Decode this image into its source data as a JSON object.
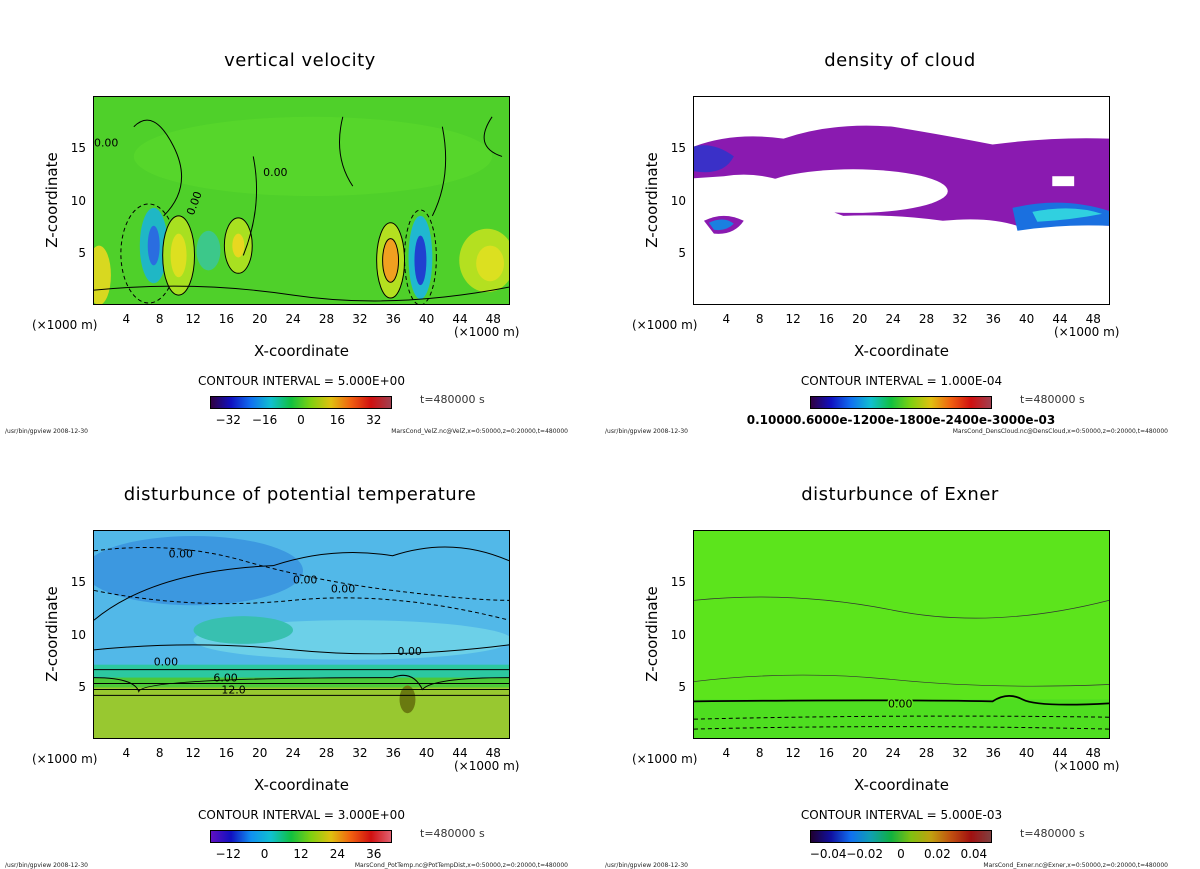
{
  "chart_data": [
    {
      "type": "heatmap",
      "title": "vertical velocity",
      "xlabel": "X-coordinate",
      "ylabel": "Z-coordinate",
      "x_unit": "(×1000 m)",
      "xlim": [
        0,
        50
      ],
      "ylim": [
        0,
        20
      ],
      "xticks": [
        "4",
        "8",
        "12",
        "16",
        "20",
        "24",
        "28",
        "32",
        "36",
        "40",
        "44",
        "48"
      ],
      "yticks": [
        "5",
        "10",
        "15"
      ],
      "contour_interval": "CONTOUR INTERVAL = 5.000E+00",
      "colorbar_ticks": [
        "−32",
        "−16",
        "0",
        "16",
        "32"
      ],
      "colorbar_range": [
        -40,
        40
      ],
      "contour_labels": [
        "0.00",
        "0.00",
        "0.00"
      ],
      "time": "t=480000 s",
      "footer_left": "/usr/bin/gpview  2008-12-30",
      "footer_right": "MarsCond_VelZ.nc@VelZ,x=0:50000,z=0:20000,t=480000"
    },
    {
      "type": "heatmap",
      "title": "density of cloud",
      "xlabel": "X-coordinate",
      "ylabel": "Z-coordinate",
      "x_unit": "(×1000 m)",
      "xlim": [
        0,
        50
      ],
      "ylim": [
        0,
        20
      ],
      "xticks": [
        "4",
        "8",
        "12",
        "16",
        "20",
        "24",
        "28",
        "32",
        "36",
        "40",
        "44",
        "48"
      ],
      "yticks": [
        "5",
        "10",
        "15"
      ],
      "contour_interval": "CONTOUR INTERVAL = 1.000E-04",
      "colorbar_ticks": [
        "0.10000.6000e-1200e-1800e-2400e-3000e-03"
      ],
      "contour_labels": [],
      "time": "t=480000 s",
      "footer_left": "/usr/bin/gpview  2008-12-30",
      "footer_right": "MarsCond_DensCloud.nc@DensCloud,x=0:50000,z=0:20000,t=480000"
    },
    {
      "type": "heatmap",
      "title": "disturbunce of potential temperature",
      "xlabel": "X-coordinate",
      "ylabel": "Z-coordinate",
      "x_unit": "(×1000 m)",
      "xlim": [
        0,
        50
      ],
      "ylim": [
        0,
        20
      ],
      "xticks": [
        "4",
        "8",
        "12",
        "16",
        "20",
        "24",
        "28",
        "32",
        "36",
        "40",
        "44",
        "48"
      ],
      "yticks": [
        "5",
        "10",
        "15"
      ],
      "contour_interval": "CONTOUR INTERVAL = 3.000E+00",
      "colorbar_ticks": [
        "−12",
        "0",
        "12",
        "24",
        "36"
      ],
      "colorbar_range": [
        -18,
        42
      ],
      "contour_labels": [
        "0.00",
        "0.00",
        "0.00",
        "0.00",
        "0.00",
        "6.00",
        "12.0"
      ],
      "time": "t=480000 s",
      "footer_left": "/usr/bin/gpview  2008-12-30",
      "footer_right": "MarsCond_PotTemp.nc@PotTempDist,x=0:50000,z=0:20000,t=480000"
    },
    {
      "type": "heatmap",
      "title": "disturbunce of Exner",
      "xlabel": "X-coordinate",
      "ylabel": "Z-coordinate",
      "x_unit": "(×1000 m)",
      "xlim": [
        0,
        50
      ],
      "ylim": [
        0,
        20
      ],
      "xticks": [
        "4",
        "8",
        "12",
        "16",
        "20",
        "24",
        "28",
        "32",
        "36",
        "40",
        "44",
        "48"
      ],
      "yticks": [
        "5",
        "10",
        "15"
      ],
      "contour_interval": "CONTOUR INTERVAL = 5.000E-03",
      "colorbar_ticks": [
        "−0.04",
        "−0.02",
        "0",
        "0.02",
        "0.04"
      ],
      "colorbar_range": [
        -0.05,
        0.05
      ],
      "contour_labels": [
        "0.00"
      ],
      "time": "t=480000 s",
      "footer_left": "/usr/bin/gpview  2008-12-30",
      "footer_right": "MarsCond_Exner.nc@Exner,x=0:50000,z=0:20000,t=480000"
    }
  ]
}
